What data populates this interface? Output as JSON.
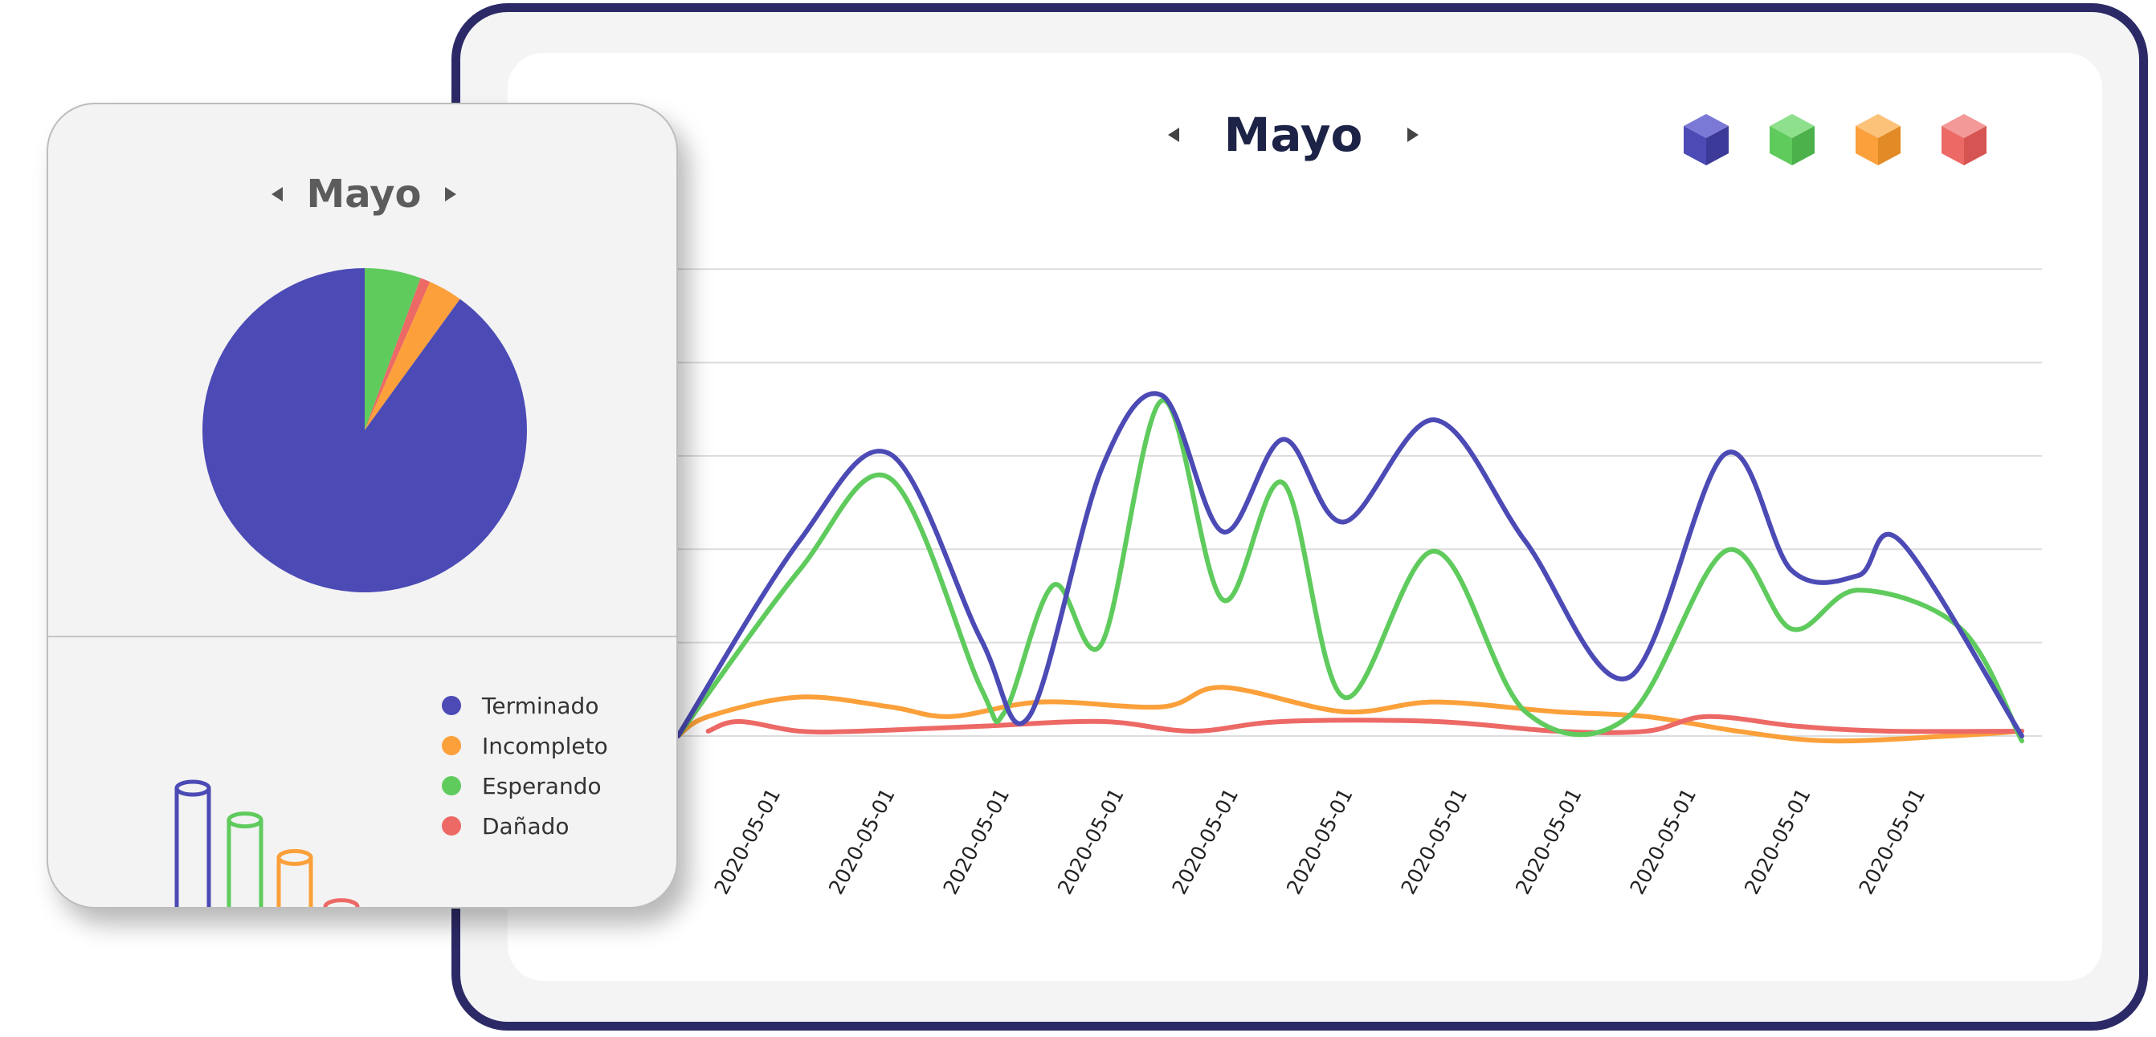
{
  "title": "Mayo",
  "card_title": "Mayo",
  "colors": {
    "terminado": "#4c4ab5",
    "incompleto": "#fba03a",
    "esperando": "#5fcb5d",
    "danado": "#ec6966"
  },
  "icons": [
    "prev-arrow-icon",
    "next-arrow-icon",
    "cube-icon"
  ],
  "legend": [
    {
      "label": "Terminado",
      "color": "#4c4ab5"
    },
    {
      "label": "Incompleto",
      "color": "#fba03a"
    },
    {
      "label": "Esperando",
      "color": "#5fcb5d"
    },
    {
      "label": "Dañado",
      "color": "#ec6966"
    }
  ],
  "chart_data": [
    {
      "type": "line",
      "title": "Mayo",
      "x_ticks": [
        "2020-05-01",
        "2020-05-01",
        "2020-05-01",
        "2020-05-01",
        "2020-05-01",
        "2020-05-01",
        "2020-05-01",
        "2020-05-01",
        "2020-05-01",
        "2020-05-01",
        "2020-05-01"
      ],
      "ylim": [
        0,
        100
      ],
      "grid": true,
      "series": [
        {
          "name": "Terminado",
          "color": "#4c4ab5",
          "points": [
            [
              0,
              0
            ],
            [
              2,
              40
            ],
            [
              3.5,
              58
            ],
            [
              5,
              20
            ],
            [
              5.8,
              4
            ],
            [
              7,
              55
            ],
            [
              8,
              70
            ],
            [
              9,
              42
            ],
            [
              10,
              61
            ],
            [
              11,
              44
            ],
            [
              12.5,
              65
            ],
            [
              14,
              40
            ],
            [
              15.7,
              12
            ],
            [
              17.3,
              58
            ],
            [
              18.4,
              34
            ],
            [
              19.5,
              33
            ],
            [
              20.2,
              40
            ],
            [
              22.2,
              0
            ]
          ]
        },
        {
          "name": "Esperando",
          "color": "#5fcb5d",
          "points": [
            [
              0,
              0
            ],
            [
              2,
              34
            ],
            [
              3.5,
              53
            ],
            [
              5,
              10
            ],
            [
              5.4,
              5
            ],
            [
              6.2,
              31
            ],
            [
              7,
              19
            ],
            [
              8,
              69
            ],
            [
              9,
              28
            ],
            [
              10,
              52
            ],
            [
              11,
              8
            ],
            [
              12.5,
              38
            ],
            [
              14,
              5
            ],
            [
              15.7,
              4
            ],
            [
              17.3,
              38
            ],
            [
              18.4,
              22
            ],
            [
              19.5,
              30
            ],
            [
              21.2,
              22
            ],
            [
              22.2,
              -1
            ]
          ]
        },
        {
          "name": "Incompleto",
          "color": "#fba03a",
          "points": [
            [
              0,
              0
            ],
            [
              0.5,
              4
            ],
            [
              2,
              8
            ],
            [
              3.5,
              6
            ],
            [
              4.5,
              4
            ],
            [
              6,
              7
            ],
            [
              8,
              6
            ],
            [
              9,
              10
            ],
            [
              11,
              5
            ],
            [
              12.5,
              7
            ],
            [
              14.5,
              5
            ],
            [
              16,
              4
            ],
            [
              17.5,
              1
            ],
            [
              19,
              -1
            ],
            [
              21,
              0
            ],
            [
              22.2,
              1
            ]
          ]
        },
        {
          "name": "Dañado",
          "color": "#ec6966",
          "points": [
            [
              0.5,
              1
            ],
            [
              1,
              3
            ],
            [
              2,
              1
            ],
            [
              3,
              1
            ],
            [
              5,
              2
            ],
            [
              7,
              3
            ],
            [
              8.5,
              1
            ],
            [
              10,
              3
            ],
            [
              12.5,
              3
            ],
            [
              14.5,
              1
            ],
            [
              16,
              1
            ],
            [
              17,
              4
            ],
            [
              18.5,
              2
            ],
            [
              20,
              1
            ],
            [
              22.2,
              1
            ]
          ]
        }
      ]
    },
    {
      "type": "pie",
      "title": "Mayo",
      "slices": [
        {
          "name": "Esperando",
          "value": 5.6,
          "color": "#5fcb5d"
        },
        {
          "name": "Dañado",
          "value": 1.0,
          "color": "#ec6966"
        },
        {
          "name": "Incompleto",
          "value": 3.4,
          "color": "#fba03a"
        },
        {
          "name": "Terminado",
          "value": 90.0,
          "color": "#4c4ab5"
        }
      ]
    },
    {
      "type": "bar",
      "categories": [
        "Terminado",
        "Esperando",
        "Incompleto",
        "Dañado"
      ],
      "values": [
        100,
        78,
        52,
        18
      ],
      "colors": [
        "#4c4ab5",
        "#5fcb5d",
        "#fba03a",
        "#ec6966"
      ]
    }
  ]
}
